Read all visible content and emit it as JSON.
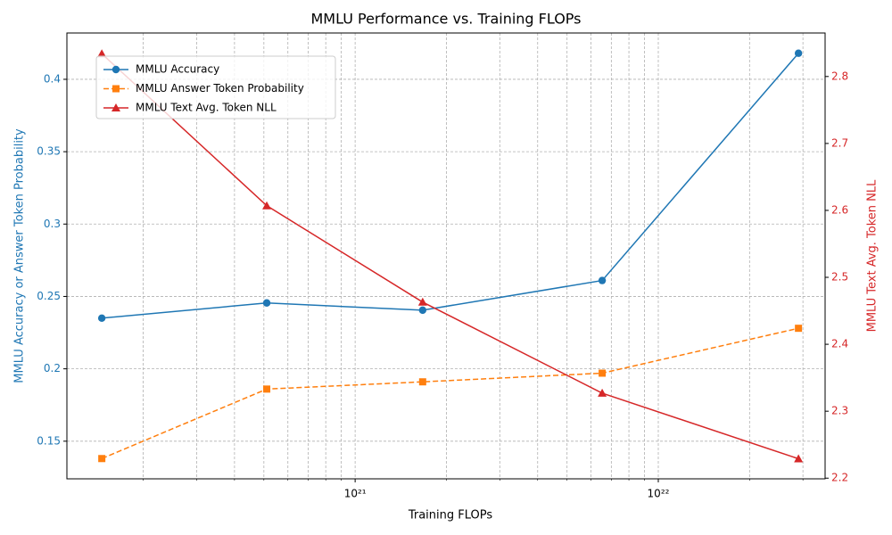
{
  "chart_data": {
    "type": "line",
    "title": "MMLU Performance vs. Training FLOPs",
    "xlabel": "Training FLOPs",
    "ylabel": "MMLU Accuracy or Answer Token Probability",
    "y2label": "MMLU Text Avg. Token NLL",
    "xscale": "log",
    "x": [
      1.46e+20,
      5.11e+20,
      1.67e+21,
      6.53e+21,
      2.9e+22
    ],
    "xlim": [
      1.12e+20,
      3.55e+22
    ],
    "xticks": [
      {
        "value": 1e+21,
        "label": "10²¹"
      },
      {
        "value": 1e+22,
        "label": "10²²"
      }
    ],
    "xminorticks": [
      2e+20,
      3e+20,
      4e+20,
      5e+20,
      6e+20,
      7e+20,
      8e+20,
      9e+20,
      2e+21,
      3e+21,
      4e+21,
      5e+21,
      6e+21,
      7e+21,
      8e+21,
      9e+21,
      2e+22,
      3e+22
    ],
    "ylim": [
      0.124,
      0.432
    ],
    "yticks": [
      0.15,
      0.2,
      0.25,
      0.3,
      0.35,
      0.4
    ],
    "y2lim": [
      2.199,
      2.865
    ],
    "y2ticks": [
      2.2,
      2.3,
      2.4,
      2.5,
      2.6,
      2.7,
      2.8
    ],
    "ycolor": "#1f77b4",
    "y2color": "#d62728",
    "grid": true,
    "legend": "upper left",
    "series": [
      {
        "name": "MMLU Accuracy",
        "color": "#1f77b4",
        "marker": "circle",
        "linestyle": "solid",
        "values": [
          0.235,
          0.2455,
          0.2405,
          0.261,
          0.418
        ]
      },
      {
        "name": "MMLU Answer Token Probability",
        "color": "#ff7f0e",
        "marker": "square",
        "linestyle": "dashed",
        "values": [
          0.138,
          0.186,
          0.191,
          0.197,
          0.228
        ]
      },
      {
        "name": "MMLU Text Avg. Token NLL",
        "color": "#d62728",
        "marker": "triangle",
        "linestyle": "solid",
        "axis": "y2",
        "values": [
          2.834,
          2.607,
          2.463,
          2.327,
          2.229
        ]
      }
    ]
  }
}
